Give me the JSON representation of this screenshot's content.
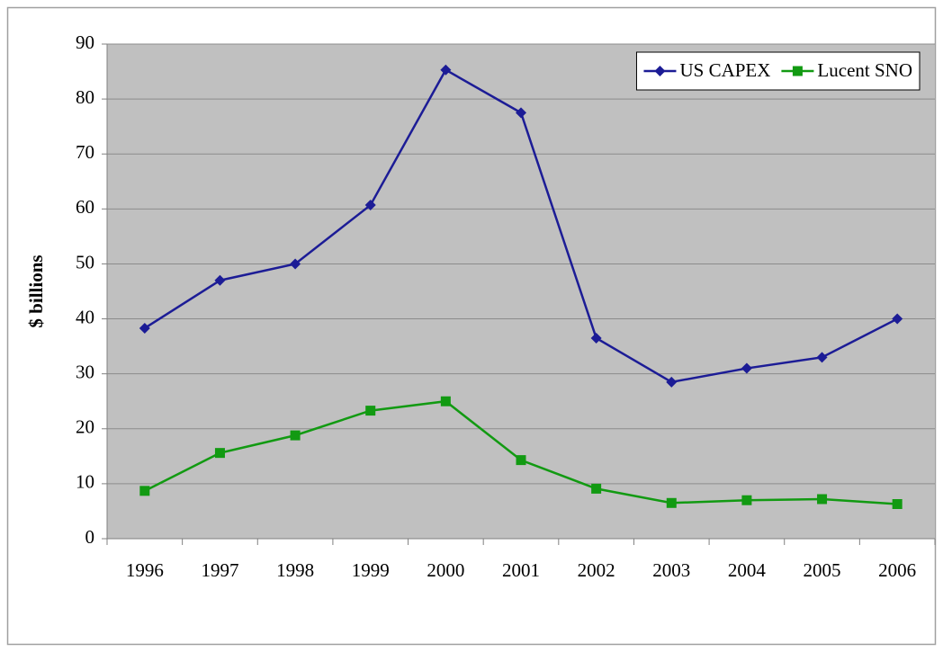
{
  "chart_data": {
    "type": "line",
    "ylabel": "$ billions",
    "categories": [
      "1996",
      "1997",
      "1998",
      "1999",
      "2000",
      "2001",
      "2002",
      "2003",
      "2004",
      "2005",
      "2006"
    ],
    "series": [
      {
        "name": "US CAPEX",
        "color": "#1c1c96",
        "marker": "diamond",
        "values": [
          38.3,
          47,
          50,
          60.7,
          85.3,
          77.5,
          36.5,
          28.5,
          31,
          33,
          40
        ]
      },
      {
        "name": "Lucent SNO",
        "color": "#129a12",
        "marker": "square",
        "values": [
          8.7,
          15.6,
          18.8,
          23.3,
          25,
          14.3,
          9.1,
          6.5,
          7,
          7.2,
          6.3
        ]
      }
    ],
    "ylim": [
      0,
      90
    ],
    "yticks": [
      0,
      10,
      20,
      30,
      40,
      50,
      60,
      70,
      80,
      90
    ],
    "grid": true,
    "legend": "upper right"
  }
}
